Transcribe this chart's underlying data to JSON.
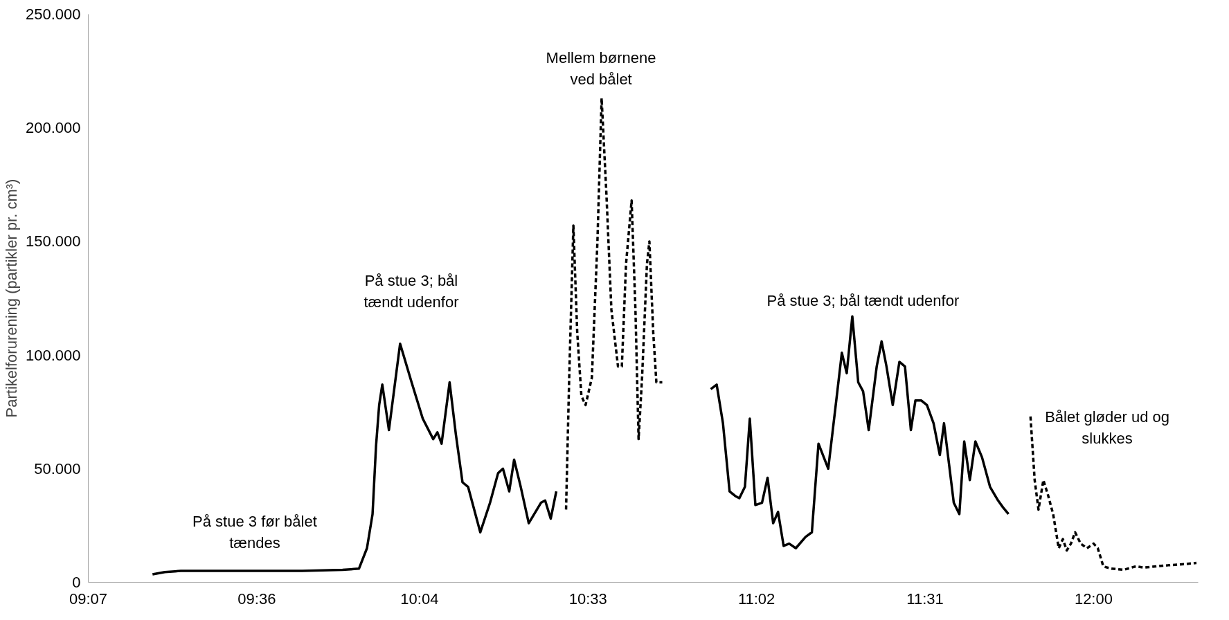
{
  "chart_data": {
    "type": "line",
    "ylabel": "Partikelforurening (partikler pr. cm³)",
    "xlim": [
      9.1167,
      12.3
    ],
    "xticks": [
      {
        "value": 9.1167,
        "label": "09:07"
      },
      {
        "value": 9.6,
        "label": "09:36"
      },
      {
        "value": 10.0667,
        "label": "10:04"
      },
      {
        "value": 10.55,
        "label": "10:33"
      },
      {
        "value": 11.0333,
        "label": "11:02"
      },
      {
        "value": 11.5167,
        "label": "11:31"
      },
      {
        "value": 12.0,
        "label": "12:00"
      }
    ],
    "ylim": [
      0,
      250000
    ],
    "yticks": [
      0,
      {
        "value": 50000,
        "label": "50.000"
      },
      {
        "value": 100000,
        "label": "100.000"
      },
      {
        "value": 150000,
        "label": "150.000"
      },
      {
        "value": 200000,
        "label": "200.000"
      },
      {
        "value": 250000,
        "label": "250.000"
      }
    ],
    "grid": false,
    "marker": "none",
    "series": [
      {
        "color": "#000000",
        "line_style": "solid",
        "x": [
          9.301,
          9.336,
          9.382,
          9.498,
          9.614,
          9.73,
          9.846,
          9.893,
          9.916,
          9.932,
          9.942,
          9.951,
          9.96,
          9.979,
          10.011,
          10.044,
          10.076,
          10.106,
          10.118,
          10.13,
          10.153,
          10.171,
          10.19,
          10.206,
          10.241,
          10.269,
          10.292,
          10.306,
          10.324,
          10.338,
          10.357,
          10.38,
          10.415,
          10.427,
          10.443,
          10.459
        ],
        "values": [
          3500,
          4500,
          5000,
          5000,
          5000,
          5000,
          5500,
          6000,
          15000,
          30000,
          60000,
          78000,
          87000,
          67000,
          105000,
          88000,
          72000,
          63000,
          66000,
          61000,
          88000,
          65000,
          44000,
          42000,
          22000,
          35000,
          48000,
          50000,
          40000,
          54000,
          42000,
          26000,
          35000,
          36000,
          28000,
          40000
        ]
      },
      {
        "color": "#000000",
        "line_style": "dashed",
        "x": [
          10.487,
          10.496,
          10.508,
          10.519,
          10.531,
          10.543,
          10.561,
          10.577,
          10.589,
          10.603,
          10.617,
          10.636,
          10.647,
          10.659,
          10.675,
          10.686,
          10.695,
          10.705,
          10.719,
          10.726,
          10.737,
          10.746,
          10.763
        ],
        "values": [
          32000,
          90000,
          157000,
          110000,
          82000,
          78000,
          90000,
          150000,
          213000,
          170000,
          120000,
          95000,
          95000,
          140000,
          168000,
          120000,
          63000,
          90000,
          140000,
          150000,
          110000,
          88000,
          88000
        ]
      },
      {
        "color": "#000000",
        "line_style": "solid",
        "x": [
          10.902,
          10.919,
          10.937,
          10.956,
          10.972,
          10.984,
          11.0,
          11.014,
          11.03,
          11.049,
          11.065,
          11.081,
          11.095,
          11.111,
          11.127,
          11.146,
          11.174,
          11.192,
          11.211,
          11.239,
          11.262,
          11.278,
          11.292,
          11.308,
          11.325,
          11.339,
          11.355,
          11.378,
          11.392,
          11.406,
          11.424,
          11.443,
          11.459,
          11.476,
          11.489,
          11.506,
          11.522,
          11.541,
          11.559,
          11.571,
          11.587,
          11.599,
          11.615,
          11.629,
          11.645,
          11.661,
          11.68,
          11.703,
          11.726,
          11.74,
          11.756
        ],
        "values": [
          85000,
          87000,
          70000,
          40000,
          38000,
          37000,
          42000,
          72000,
          34000,
          35000,
          46000,
          26000,
          31000,
          16000,
          17000,
          15000,
          20000,
          22000,
          61000,
          50000,
          80000,
          101000,
          92000,
          117000,
          88000,
          84000,
          67000,
          95000,
          106000,
          95000,
          78000,
          97000,
          95000,
          67000,
          80000,
          80000,
          78000,
          70000,
          56000,
          70000,
          50000,
          35000,
          30000,
          62000,
          45000,
          62000,
          55000,
          42000,
          36000,
          33000,
          30000
        ]
      },
      {
        "color": "#000000",
        "line_style": "dashed",
        "x": [
          11.819,
          11.831,
          11.842,
          11.856,
          11.87,
          11.884,
          11.9,
          11.912,
          11.923,
          11.935,
          11.947,
          11.963,
          11.981,
          12.0,
          12.012,
          12.028,
          12.051,
          12.086,
          12.121,
          12.144,
          12.179,
          12.214,
          12.26,
          12.295
        ],
        "values": [
          73000,
          45000,
          32000,
          45000,
          38000,
          30000,
          15000,
          19000,
          14000,
          17000,
          22000,
          17000,
          15000,
          17000,
          15000,
          7000,
          6000,
          5500,
          7000,
          6500,
          7000,
          7500,
          8000,
          8500
        ]
      }
    ],
    "annotations": [
      "På stue 3 før bålet\ntændes",
      "På stue 3; bål\ntændt udenfor",
      "Mellem børnene\nved bålet",
      "På stue 3; bål tændt udenfor",
      "Bålet gløder ud og\nslukkes"
    ]
  }
}
